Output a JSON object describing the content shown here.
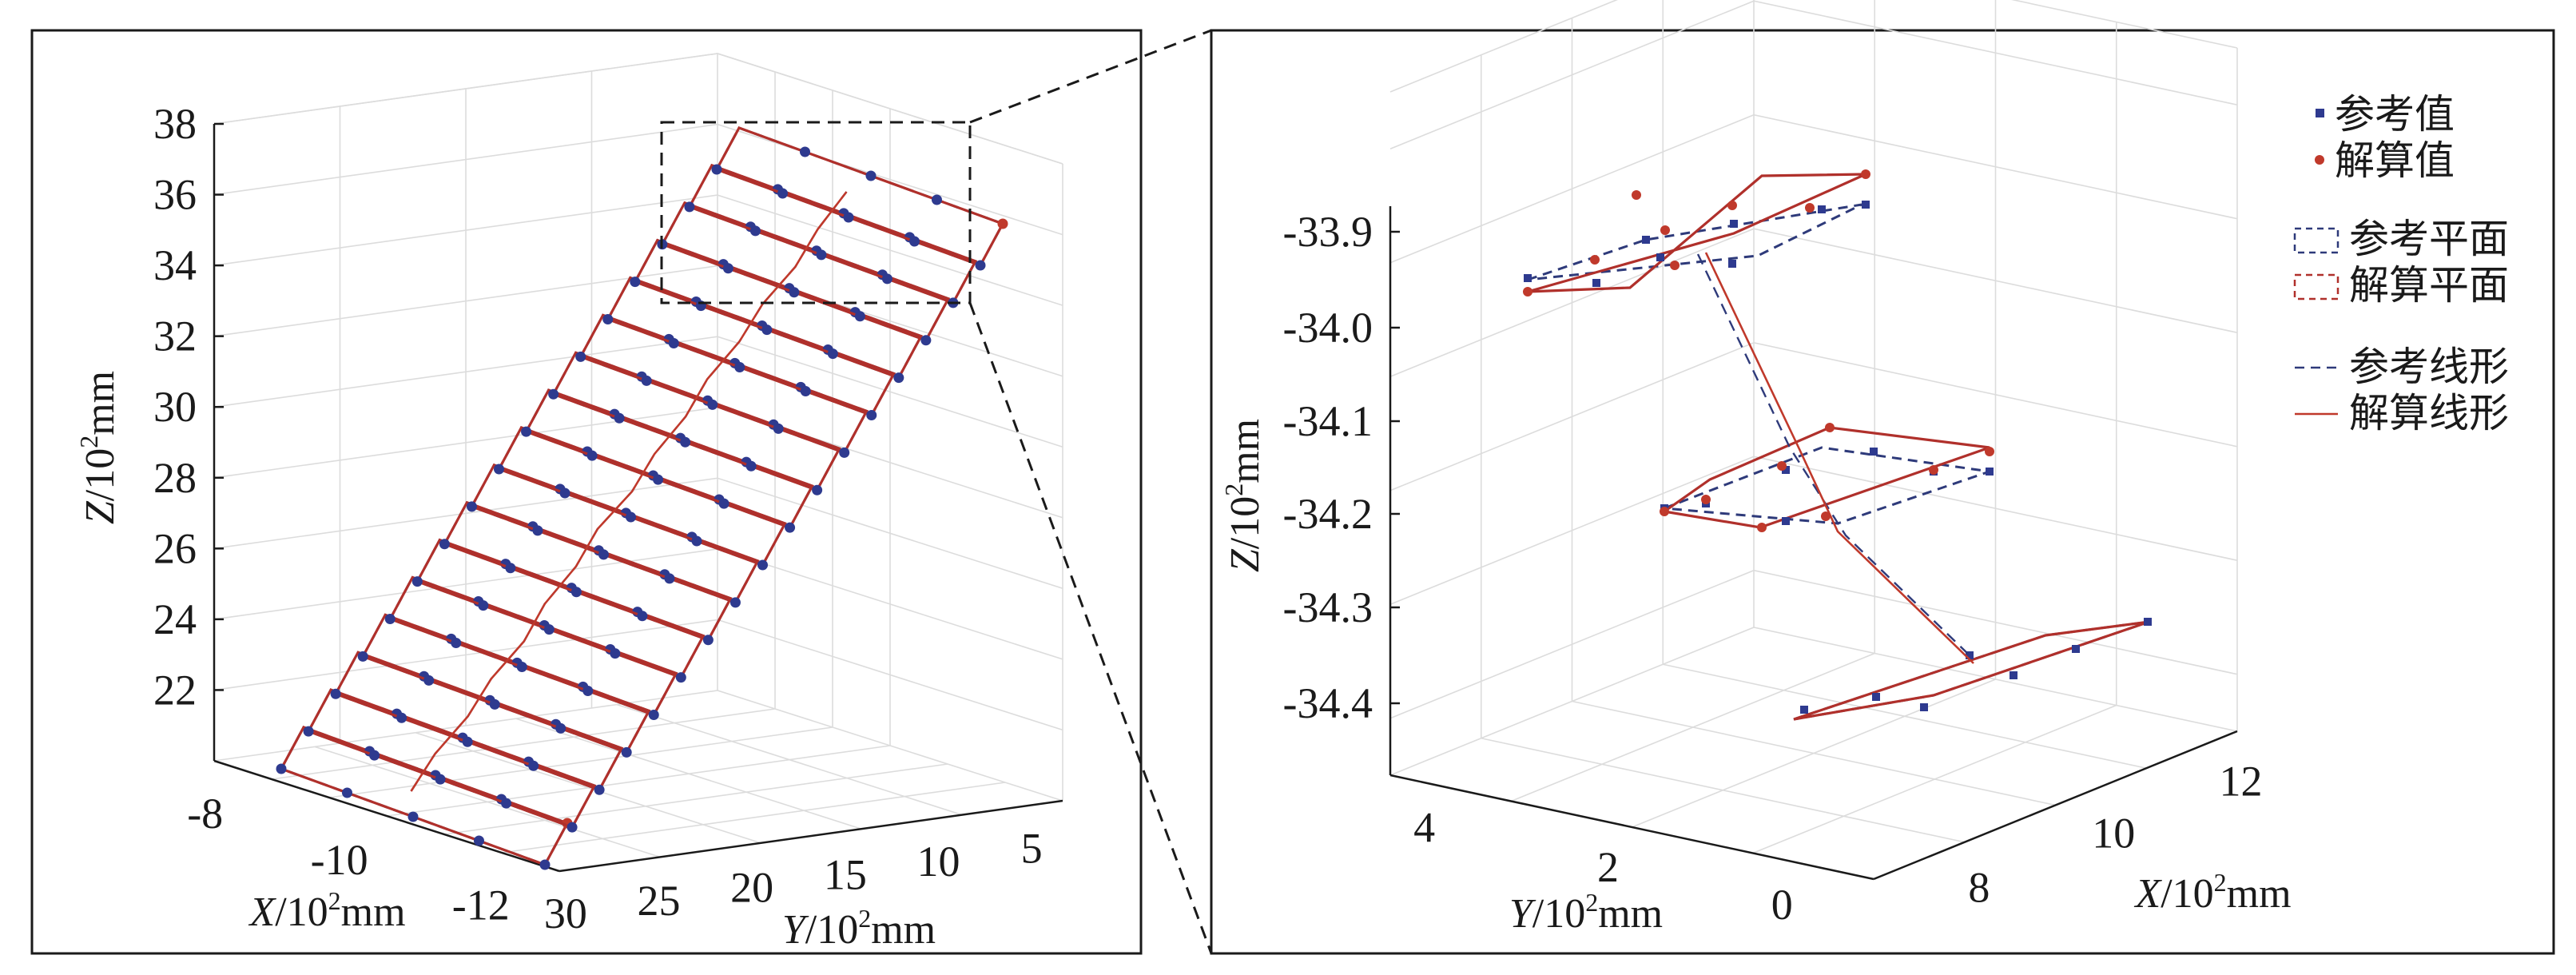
{
  "colors": {
    "reference": "#2e3a8f",
    "solution": "#c0392b",
    "grid": "#dcdcdc"
  },
  "chart_data": [
    {
      "type": "scatter",
      "name": "overview",
      "xlabel_prefix": "X",
      "ylabel_prefix": "Y",
      "zlabel_prefix": "Z",
      "unit_base": "/10",
      "unit_exp": "2",
      "unit_suffix": "mm",
      "x_ticks": [
        "-8",
        "-10",
        "-12"
      ],
      "y_ticks": [
        "30",
        "25",
        "20",
        "15",
        "10",
        "5"
      ],
      "z_ticks": [
        "22",
        "24",
        "26",
        "28",
        "30",
        "32",
        "34",
        "36",
        "38"
      ],
      "xlim": [
        -12,
        -7
      ],
      "ylim": [
        5,
        30
      ],
      "zlim": [
        20,
        38
      ],
      "grid": true,
      "n_planes": 17,
      "points_per_edge": 5
    },
    {
      "type": "scatter",
      "name": "zoom",
      "xlabel_prefix": "X",
      "ylabel_prefix": "Y",
      "zlabel_prefix": "Z",
      "unit_base": "/10",
      "unit_exp": "2",
      "unit_suffix": "mm",
      "x_ticks": [
        "8",
        "10",
        "12"
      ],
      "y_ticks": [
        "4",
        "2",
        "0"
      ],
      "z_ticks": [
        "-33.9",
        "-34.0",
        "-34.1",
        "-34.2",
        "-34.3",
        "-34.4"
      ],
      "xlim": [
        7,
        13
      ],
      "ylim": [
        -1,
        5
      ],
      "zlim": [
        -34.45,
        -33.85
      ],
      "grid": true,
      "legend": {
        "position": "top-right",
        "items": [
          {
            "label": "参考值",
            "kind": "ref-point"
          },
          {
            "label": "解算值",
            "kind": "sol-point"
          },
          {
            "label": "参考平面",
            "kind": "ref-plane"
          },
          {
            "label": "解算平面",
            "kind": "sol-plane"
          },
          {
            "label": "参考线形",
            "kind": "ref-line"
          },
          {
            "label": "解算线形",
            "kind": "sol-line"
          }
        ]
      },
      "planes": [
        {
          "z": -33.92
        },
        {
          "z": -34.17
        },
        {
          "z": -34.4
        }
      ]
    }
  ]
}
